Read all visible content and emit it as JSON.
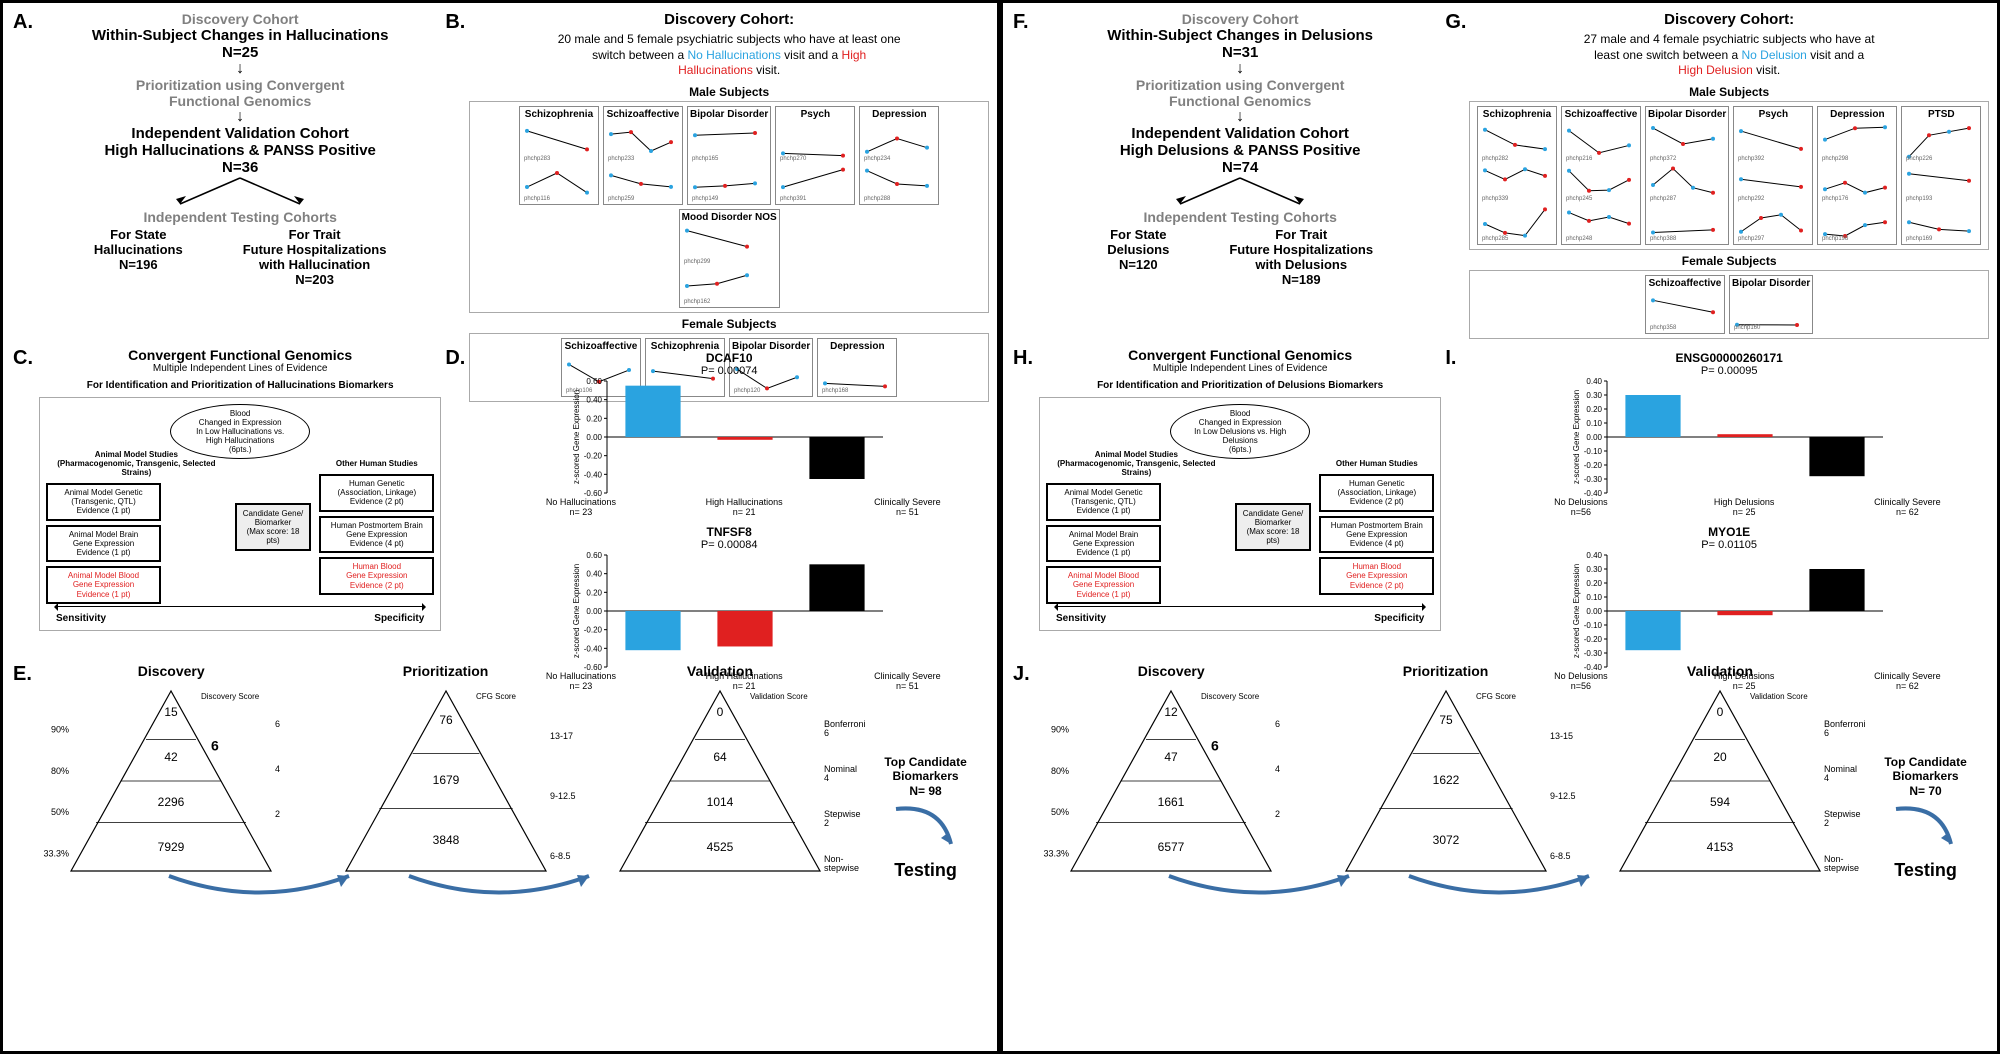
{
  "left": {
    "A": {
      "label": "A.",
      "discovery_cohort": "Discovery Cohort",
      "title": "Within-Subject Changes in Hallucinations",
      "n": "N=25",
      "prioritization": "Prioritization using Convergent\nFunctional Genomics",
      "validation_title": "Independent Validation Cohort\nHigh Hallucinations & PANSS Positive",
      "validation_n": "N=36",
      "testing_cohorts": "Independent Testing Cohorts",
      "state": "For State\nHallucinations\nN=196",
      "trait": "For Trait\nFuture Hospitalizations\nwith Hallucination\nN=203"
    },
    "B": {
      "label": "B.",
      "title": "Discovery Cohort:",
      "sub1": "20 male and 5 female psychiatric subjects who have at least one",
      "sub2a": "switch between a ",
      "sub2b": "No Hallucinations",
      "sub2c": " visit and a ",
      "sub2d": "High",
      "sub3": "Hallucinations",
      "sub3b": " visit.",
      "male_label": "Male Subjects",
      "female_label": "Female Subjects",
      "male_dx": [
        "Schizophrenia",
        "Schizoaffective",
        "Bipolar Disorder",
        "Psych",
        "Depression",
        "Mood Disorder NOS"
      ],
      "female_dx": [
        "Schizoaffective",
        "Schizophrenia",
        "Bipolar Disorder",
        "Depression"
      ]
    },
    "C": {
      "label": "C.",
      "title": "Convergent Functional Genomics",
      "sub1": "Multiple Independent Lines of Evidence",
      "sub2": "For Identification and Prioritization of Hallucinations Biomarkers",
      "oval": "Blood\nChanged in Expression\nIn Low Hallucinations vs.\nHigh Hallucinations\n(6pts.)",
      "left_col_title": "Animal Model Studies\n(Pharmacogenomic, Transgenic, Selected Strains)",
      "right_col_title": "Other Human Studies",
      "left_boxes": [
        {
          "t": "Animal Model Genetic\n(Transgenic, QTL)\nEvidence (1 pt)",
          "red": false
        },
        {
          "t": "Animal Model Brain\nGene Expression\nEvidence (1 pt)",
          "red": false
        },
        {
          "t": "Animal Model Blood\nGene Expression\nEvidence (1 pt)",
          "red": true
        }
      ],
      "right_boxes": [
        {
          "t": "Human Genetic\n(Association, Linkage)\nEvidence (2 pt)",
          "red": false
        },
        {
          "t": "Human Postmortem Brain\nGene Expression\nEvidence (4 pt)",
          "red": false
        },
        {
          "t": "Human Blood\nGene Expression\nEvidence (2 pt)",
          "red": true
        }
      ],
      "center": "Candidate Gene/\nBiomarker\n(Max score: 18 pts)",
      "axis_left": "Sensitivity",
      "axis_right": "Specificity"
    },
    "D": {
      "label": "D.",
      "charts": [
        {
          "gene": "DCAF10",
          "p": "P= 0.00074",
          "ylim": [
            -0.6,
            0.6
          ],
          "ticks": [
            -0.6,
            -0.4,
            -0.2,
            0.0,
            0.2,
            0.4,
            0.6
          ],
          "bars": [
            {
              "label": "No Hallucinations",
              "n": "n= 23",
              "v": 0.55,
              "color": "#2aa3e0"
            },
            {
              "label": "High Hallucinations",
              "n": "n= 21",
              "v": -0.03,
              "color": "#e02020"
            },
            {
              "label": "Clinically Severe",
              "n": "n= 51",
              "v": -0.45,
              "color": "#000000"
            }
          ],
          "ylabel": "z-scored Gene Expression"
        },
        {
          "gene": "TNFSF8",
          "p": "P= 0.00084",
          "ylim": [
            -0.6,
            0.6
          ],
          "ticks": [
            -0.6,
            -0.4,
            -0.2,
            0.0,
            0.2,
            0.4,
            0.6
          ],
          "bars": [
            {
              "label": "No Hallucinations",
              "n": "n= 23",
              "v": -0.42,
              "color": "#2aa3e0"
            },
            {
              "label": "High Hallucinations",
              "n": "n= 21",
              "v": -0.38,
              "color": "#e02020"
            },
            {
              "label": "Clinically Severe",
              "n": "n= 51",
              "v": 0.5,
              "color": "#000000"
            }
          ],
          "ylabel": "z-scored Gene Expression"
        }
      ]
    },
    "E": {
      "label": "E.",
      "pyramids": [
        {
          "title": "Discovery",
          "side_label": "Discovery Score",
          "left_labels": [
            "90%",
            "80%",
            "50%",
            "33.3%"
          ],
          "right_labels": [
            "6",
            "4",
            "2"
          ],
          "values": [
            "15",
            "42",
            "2296",
            "7929"
          ],
          "extra": "6"
        },
        {
          "title": "Prioritization",
          "side_label": "CFG Score",
          "right_labels": [
            "13-17",
            "9-12.5",
            "6-8.5"
          ],
          "values": [
            "76",
            "1679",
            "3848"
          ]
        },
        {
          "title": "Validation",
          "side_label": "Validation Score",
          "right_labels": [
            "Bonferroni\n6",
            "Nominal\n4",
            "Stepwise\n2",
            "Non-\nstepwise"
          ],
          "values": [
            "0",
            "64",
            "1014",
            "4525"
          ]
        }
      ],
      "top_candidate": "Top Candidate\nBiomarkers\nN= 98",
      "testing": "Testing"
    }
  },
  "right": {
    "F": {
      "label": "F.",
      "discovery_cohort": "Discovery Cohort",
      "title": "Within-Subject Changes in Delusions",
      "n": "N=31",
      "prioritization": "Prioritization using Convergent\nFunctional Genomics",
      "validation_title": "Independent Validation Cohort\nHigh Delusions & PANSS Positive",
      "validation_n": "N=74",
      "testing_cohorts": "Independent Testing Cohorts",
      "state": "For State\nDelusions\nN=120",
      "trait": "For Trait\nFuture Hospitalizations\nwith Delusions\nN=189"
    },
    "G": {
      "label": "G.",
      "title": "Discovery Cohort:",
      "sub1": "27 male and 4 female psychiatric subjects who have at",
      "sub2a": "least one switch between a ",
      "sub2b": "No Delusion",
      "sub2c": " visit and a",
      "sub2d": "",
      "sub3": "High Delusion",
      "sub3b": " visit.",
      "male_label": "Male Subjects",
      "female_label": "Female Subjects",
      "male_dx": [
        "Schizophrenia",
        "Schizoaffective",
        "Bipolar Disorder",
        "Psych",
        "Depression",
        "PTSD"
      ],
      "female_dx": [
        "Schizoaffective",
        "Bipolar Disorder"
      ]
    },
    "H": {
      "label": "H.",
      "title": "Convergent Functional Genomics",
      "sub1": "Multiple Independent Lines of Evidence",
      "sub2": "For Identification and Prioritization of Delusions Biomarkers",
      "oval": "Blood\nChanged in Expression\nIn Low Delusions vs. High\nDelusions\n(6pts.)",
      "left_col_title": "Animal Model Studies\n(Pharmacogenomic, Transgenic, Selected Strains)",
      "right_col_title": "Other Human Studies",
      "left_boxes": [
        {
          "t": "Animal Model Genetic\n(Transgenic, QTL)\nEvidence (1 pt)",
          "red": false
        },
        {
          "t": "Animal Model Brain\nGene Expression\nEvidence (1 pt)",
          "red": false
        },
        {
          "t": "Animal Model Blood\nGene Expression\nEvidence (1 pt)",
          "red": true
        }
      ],
      "right_boxes": [
        {
          "t": "Human Genetic\n(Association, Linkage)\nEvidence (2 pt)",
          "red": false
        },
        {
          "t": "Human Postmortem Brain\nGene Expression\nEvidence (4 pt)",
          "red": false
        },
        {
          "t": "Human Blood\nGene Expression\nEvidence (2 pt)",
          "red": true
        }
      ],
      "center": "Candidate Gene/\nBiomarker\n(Max score: 18 pts)",
      "axis_left": "Sensitivity",
      "axis_right": "Specificity"
    },
    "I": {
      "label": "I.",
      "charts": [
        {
          "gene": "ENSG00000260171",
          "p": "P= 0.00095",
          "ylim": [
            -0.4,
            0.4
          ],
          "ticks": [
            -0.4,
            -0.3,
            -0.2,
            -0.1,
            0.0,
            0.1,
            0.2,
            0.3,
            0.4
          ],
          "bars": [
            {
              "label": "No Delusions",
              "n": "n=56",
              "v": 0.3,
              "color": "#2aa3e0"
            },
            {
              "label": "High Delusions",
              "n": "n= 25",
              "v": 0.02,
              "color": "#e02020"
            },
            {
              "label": "Clinically Severe",
              "n": "n= 62",
              "v": -0.28,
              "color": "#000000"
            }
          ],
          "ylabel": "z-scored Gene Expression"
        },
        {
          "gene": "MYO1E",
          "p": "P= 0.01105",
          "ylim": [
            -0.4,
            0.4
          ],
          "ticks": [
            -0.4,
            -0.3,
            -0.2,
            -0.1,
            0.0,
            0.1,
            0.2,
            0.3,
            0.4
          ],
          "bars": [
            {
              "label": "No Delusions",
              "n": "n=56",
              "v": -0.28,
              "color": "#2aa3e0"
            },
            {
              "label": "High Delusions",
              "n": "n= 25",
              "v": -0.03,
              "color": "#e02020"
            },
            {
              "label": "Clinically Severe",
              "n": "n= 62",
              "v": 0.3,
              "color": "#000000"
            }
          ],
          "ylabel": "z-scored Gene Expression"
        }
      ]
    },
    "J": {
      "label": "J.",
      "pyramids": [
        {
          "title": "Discovery",
          "side_label": "Discovery Score",
          "left_labels": [
            "90%",
            "80%",
            "50%",
            "33.3%"
          ],
          "right_labels": [
            "6",
            "4",
            "2"
          ],
          "values": [
            "12",
            "47",
            "1661",
            "6577"
          ],
          "extra": "6"
        },
        {
          "title": "Prioritization",
          "side_label": "CFG Score",
          "right_labels": [
            "13-15",
            "9-12.5",
            "6-8.5"
          ],
          "values": [
            "75",
            "1622",
            "3072"
          ]
        },
        {
          "title": "Validation",
          "side_label": "Validation Score",
          "right_labels": [
            "Bonferroni\n6",
            "Nominal\n4",
            "Stepwise\n2",
            "Non-\nstepwise"
          ],
          "values": [
            "0",
            "20",
            "594",
            "4153"
          ]
        }
      ],
      "top_candidate": "Top Candidate\nBiomarkers\nN= 70",
      "testing": "Testing"
    }
  },
  "colors": {
    "blue": "#2aa3e0",
    "red": "#e02020",
    "black": "#000000",
    "arrow": "#3a6ea5",
    "grid": "#cccccc"
  }
}
